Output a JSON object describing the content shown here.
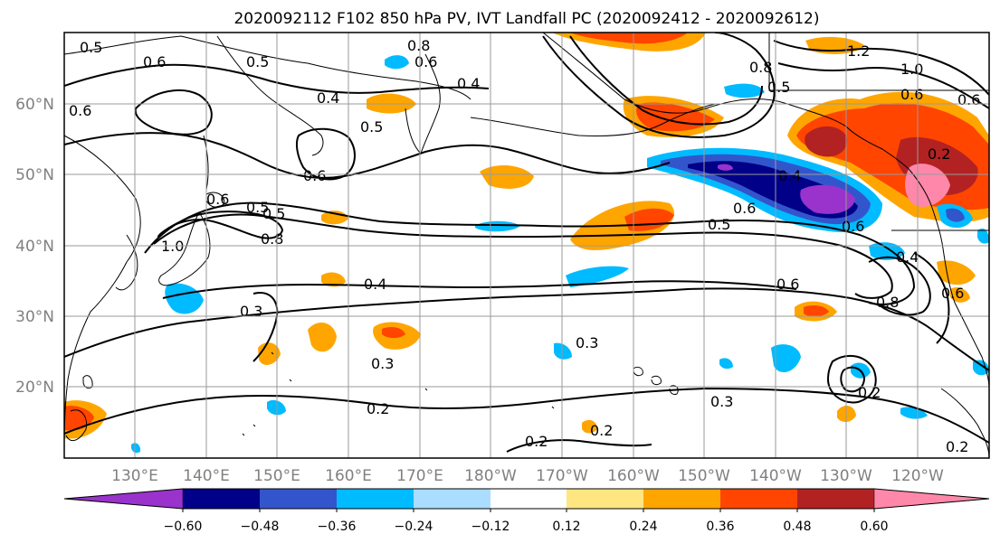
{
  "title": "2020092112 F102 850 hPa PV, IVT Landfall PC (2020092412 - 2020092612)",
  "map": {
    "lat_labels": [
      "60°N",
      "50°N",
      "40°N",
      "30°N",
      "20°N"
    ],
    "lon_labels": [
      "130°E",
      "140°E",
      "150°E",
      "160°E",
      "170°E",
      "180°W",
      "170°W",
      "160°W",
      "150°W",
      "140°W",
      "130°W",
      "120°W"
    ],
    "contour_labels": [
      "0.5",
      "0.6",
      "0.6",
      "0.8",
      "0.6",
      "0.5",
      "0.4",
      "0.4",
      "0.5",
      "1.2",
      "1.0",
      "0.5",
      "0.6",
      "0.6",
      "0.8",
      "0.6",
      "0.2",
      "0.4",
      "0.5",
      "0.6",
      "0.6",
      "0.4",
      "0.5",
      "0.6",
      "0.5",
      "1.0",
      "0.8",
      "0.4",
      "0.6",
      "0.6",
      "0.8",
      "0.3",
      "0.3",
      "0.3",
      "0.2",
      "0.2",
      "0.3",
      "0.2",
      "0.2",
      "0.2"
    ]
  },
  "colorbar": {
    "colors": [
      "#9933cc",
      "#000088",
      "#3355cc",
      "#00bbff",
      "#aaddff",
      "#ffffff",
      "#ffe680",
      "#ffa500",
      "#ff4500",
      "#b22222",
      "#ff88aa"
    ],
    "tick_labels": [
      "−0.60",
      "−0.48",
      "−0.36",
      "−0.24",
      "−0.12",
      "0.12",
      "0.24",
      "0.36",
      "0.48",
      "0.60"
    ]
  }
}
